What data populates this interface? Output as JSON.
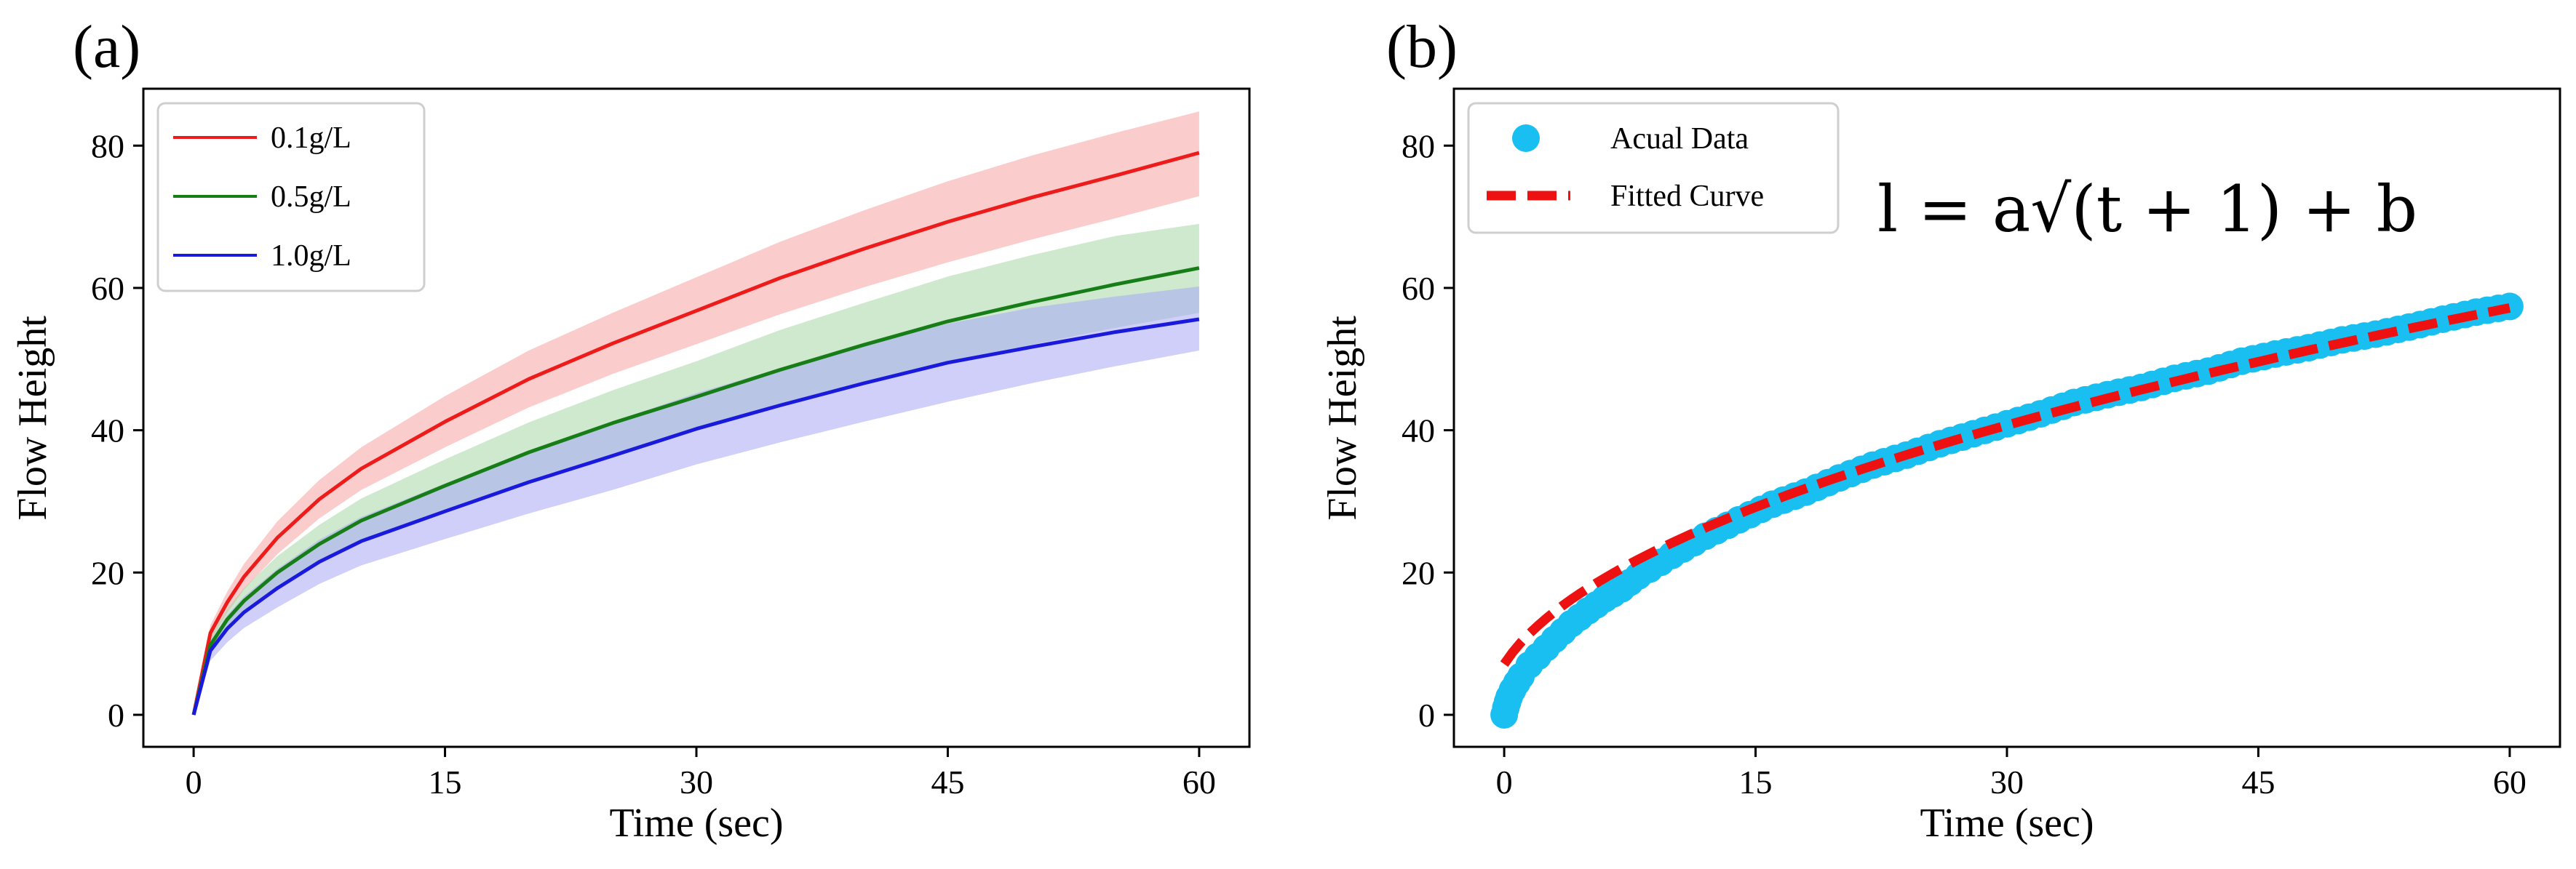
{
  "colors": {
    "red": "#ee1b1b",
    "green": "#177d17",
    "blue": "#1a1adc",
    "red_band": "#f6a3a3",
    "green_band": "#a6d7a6",
    "blue_band": "#a7a7f5",
    "cyan": "#19bff0",
    "fit_red": "#ee1111"
  },
  "chart_data": [
    {
      "panel": "(a)",
      "type": "line",
      "xlabel": "Time (sec)",
      "ylabel": "Flow Height",
      "xlim": [
        -3,
        63
      ],
      "ylim": [
        -4.5,
        88
      ],
      "xticks": [
        0,
        15,
        30,
        45,
        60
      ],
      "yticks": [
        0,
        20,
        40,
        60,
        80
      ],
      "legend_position": "top-left",
      "x": [
        0,
        1,
        2,
        3,
        5,
        7.5,
        10,
        15,
        20,
        25,
        30,
        35,
        40,
        45,
        50,
        55,
        60
      ],
      "series": [
        {
          "name": "0.1g/L",
          "color_key": "red",
          "values": [
            0,
            11.5,
            15.8,
            19.4,
            24.9,
            30.3,
            34.6,
            41.2,
            47.2,
            52.2,
            56.8,
            61.4,
            65.5,
            69.3,
            72.7,
            75.8,
            79.0
          ],
          "lower": [
            0,
            10.4,
            14.3,
            17.6,
            22.6,
            27.6,
            31.6,
            37.6,
            43.2,
            47.9,
            52.1,
            56.3,
            60.1,
            63.6,
            66.8,
            69.8,
            72.9
          ],
          "upper": [
            0,
            12.6,
            17.3,
            21.2,
            27.2,
            33.0,
            37.6,
            44.8,
            51.2,
            56.5,
            61.5,
            66.5,
            70.9,
            75.0,
            78.6,
            81.8,
            84.8
          ]
        },
        {
          "name": "0.5g/L",
          "color_key": "green",
          "values": [
            0,
            9.8,
            13.4,
            16.0,
            20.0,
            24.0,
            27.3,
            32.2,
            36.9,
            41.0,
            44.7,
            48.5,
            52.0,
            55.3,
            58.0,
            60.5,
            62.8
          ],
          "lower": [
            0,
            8.7,
            11.9,
            14.3,
            17.9,
            21.5,
            24.4,
            28.8,
            33.0,
            36.7,
            40.0,
            43.4,
            46.6,
            49.6,
            52.0,
            54.4,
            56.5
          ],
          "upper": [
            0,
            10.9,
            14.9,
            17.8,
            22.3,
            26.7,
            30.4,
            35.9,
            41.1,
            45.6,
            49.7,
            54.1,
            57.9,
            61.6,
            64.6,
            67.3,
            69.0
          ]
        },
        {
          "name": "1.0g/L",
          "color_key": "blue",
          "values": [
            0,
            9.0,
            12.1,
            14.4,
            17.8,
            21.5,
            24.4,
            28.6,
            32.7,
            36.4,
            40.2,
            43.5,
            46.6,
            49.5,
            51.7,
            53.8,
            55.6
          ],
          "lower": [
            0,
            7.6,
            10.2,
            12.2,
            15.1,
            18.4,
            21.0,
            24.7,
            28.3,
            31.6,
            35.2,
            38.3,
            41.2,
            44.0,
            46.6,
            49.0,
            51.2
          ],
          "upper": [
            0,
            10.4,
            14.0,
            16.6,
            20.5,
            24.6,
            27.8,
            32.5,
            37.1,
            41.2,
            45.2,
            48.7,
            52.0,
            55.0,
            57.2,
            58.8,
            60.2
          ]
        }
      ]
    },
    {
      "panel": "(b)",
      "type": "scatter",
      "xlabel": "Time (sec)",
      "ylabel": "Flow Height",
      "xlim": [
        -3,
        63
      ],
      "ylim": [
        -4.5,
        88
      ],
      "xticks": [
        0,
        15,
        30,
        45,
        60
      ],
      "yticks": [
        0,
        20,
        40,
        60,
        80
      ],
      "legend_position": "top-left",
      "equation_text": "l = a√(t + 1) + b",
      "series": [
        {
          "name": "Acual Data",
          "kind": "scatter",
          "color_key": "cyan",
          "x": [
            0,
            0.1,
            0.2,
            0.3,
            0.5,
            0.75,
            1,
            1.5,
            2,
            2.5,
            3,
            4,
            5,
            6,
            7,
            8,
            10,
            12,
            14,
            16,
            18,
            20,
            22,
            24,
            26,
            28,
            30,
            32,
            34,
            36,
            38,
            40,
            42,
            44,
            46,
            48,
            50,
            52,
            54,
            56,
            58,
            60
          ],
          "y": [
            0,
            1.0,
            1.8,
            2.5,
            3.5,
            4.5,
            5.4,
            7.0,
            8.2,
            9.4,
            10.6,
            12.8,
            14.6,
            16.3,
            17.7,
            19.5,
            22.4,
            25.1,
            27.4,
            29.6,
            31.3,
            33.3,
            35.1,
            36.5,
            38.1,
            39.5,
            40.9,
            42.3,
            43.9,
            45.0,
            46.0,
            47.3,
            48.3,
            49.7,
            50.7,
            51.6,
            52.7,
            53.5,
            54.5,
            55.6,
            56.6,
            57.4
          ]
        },
        {
          "name": "Fitted Curve",
          "kind": "fit",
          "color_key": "fit_red",
          "a": 7.35,
          "b": -0.22
        }
      ]
    }
  ]
}
